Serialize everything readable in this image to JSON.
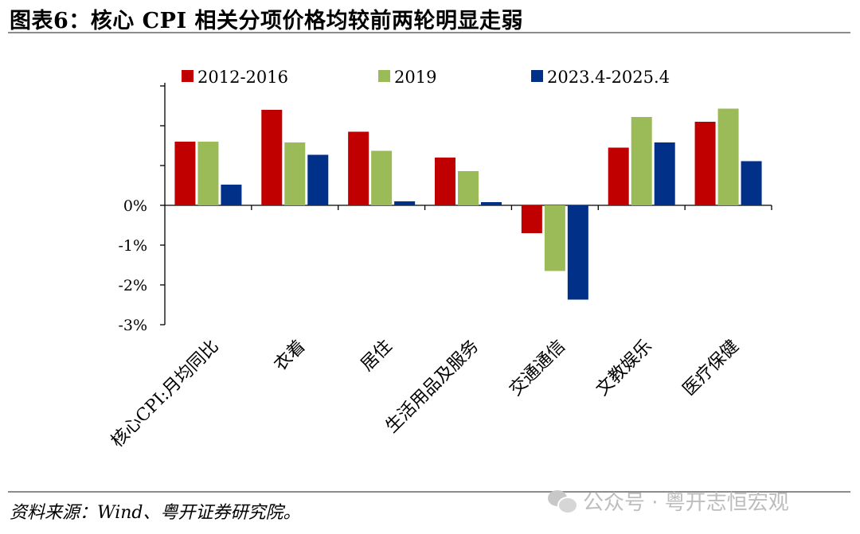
{
  "title": "图表6：核心 CPI 相关分项价格均较前两轮明显走弱",
  "source": "资料来源：Wind、粤开证券研究院。",
  "watermark": "公众号 · 粤开志恒宏观",
  "chart_data": {
    "type": "bar",
    "categories": [
      "核心CPI:月均同比",
      "衣着",
      "居住",
      "生活用品及服务",
      "交通通信",
      "文教娱乐",
      "医疗保健"
    ],
    "series": [
      {
        "name": "2012-2016",
        "color": "#c00000",
        "values": [
          1.6,
          2.4,
          1.85,
          1.2,
          -0.7,
          1.45,
          2.1
        ]
      },
      {
        "name": "2019",
        "color": "#9bbb59",
        "values": [
          1.6,
          1.58,
          1.37,
          0.86,
          -1.65,
          2.22,
          2.43
        ]
      },
      {
        "name": "2023.4-2025.4",
        "color": "#003087",
        "values": [
          0.52,
          1.27,
          0.1,
          0.08,
          -2.37,
          1.58,
          1.11
        ]
      }
    ],
    "yticks": [
      "0%",
      "-1%",
      "-2%",
      "-3%"
    ],
    "ylim": [
      -3,
      3
    ],
    "grid": false,
    "legend_position": "top"
  }
}
